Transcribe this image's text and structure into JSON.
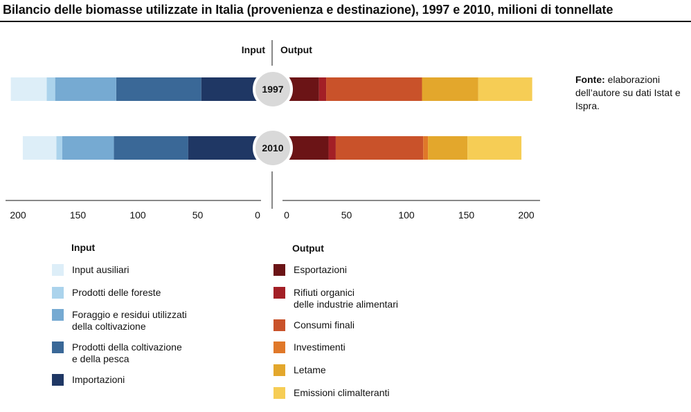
{
  "title": "Bilancio delle biomasse utilizzate in Italia (provenienza e destinazione), 1997 e 2010, milioni di tonnellate",
  "source": {
    "label": "Fonte:",
    "text": "elaborazioni dell’autore su dati Istat e Ispra."
  },
  "chart_data": {
    "type": "bar",
    "orientation": "horizontal-butterfly",
    "categories": [
      "1997",
      "2010"
    ],
    "input": {
      "header": "Input",
      "direction": "left",
      "xlim": [
        0,
        210
      ],
      "ticks": [
        200,
        150,
        100,
        50,
        0
      ],
      "series": [
        {
          "name": "Importazioni",
          "color": "#1f3764",
          "values": [
            47,
            58
          ]
        },
        {
          "name": "Prodotti della coltivazione\ne della pesca",
          "color": "#3a6897",
          "values": [
            71,
            62
          ]
        },
        {
          "name": "Foraggio e residui utilizzati\ndella coltivazione",
          "color": "#76aad2",
          "values": [
            51,
            43
          ]
        },
        {
          "name": "Prodotti delle foreste",
          "color": "#abd3ec",
          "values": [
            7,
            5
          ]
        },
        {
          "name": "Input ausiliari",
          "color": "#ddeef8",
          "values": [
            30,
            28
          ]
        }
      ]
    },
    "output": {
      "header": "Output",
      "direction": "right",
      "xlim": [
        0,
        210
      ],
      "ticks": [
        0,
        50,
        100,
        150,
        200
      ],
      "series": [
        {
          "name": "Esportazioni",
          "color": "#6b1416",
          "values": [
            27,
            35
          ]
        },
        {
          "name": "Rifiuti organici\ndelle industrie alimentari",
          "color": "#a31f26",
          "values": [
            6,
            6
          ]
        },
        {
          "name": "Consumi finali",
          "color": "#c9522a",
          "values": [
            80,
            73
          ]
        },
        {
          "name": "Investimenti",
          "color": "#e07829",
          "values": [
            0,
            4
          ]
        },
        {
          "name": "Letame",
          "color": "#e3a72c",
          "values": [
            47,
            33
          ]
        },
        {
          "name": "Emissioni climalteranti",
          "color": "#f6cd55",
          "values": [
            45,
            45
          ]
        }
      ]
    }
  },
  "legend": {
    "input_title": "Input",
    "output_title": "Output",
    "input_items": [
      {
        "label": "Input ausiliari",
        "color": "#ddeef8"
      },
      {
        "label": "Prodotti delle foreste",
        "color": "#abd3ec"
      },
      {
        "label": "Foraggio e residui utilizzati\ndella coltivazione",
        "color": "#76aad2"
      },
      {
        "label": "Prodotti della coltivazione\ne della pesca",
        "color": "#3a6897"
      },
      {
        "label": "Importazioni",
        "color": "#1f3764"
      }
    ],
    "output_items": [
      {
        "label": "Esportazioni",
        "color": "#6b1416"
      },
      {
        "label": "Rifiuti organici\ndelle industrie alimentari",
        "color": "#a31f26"
      },
      {
        "label": "Consumi finali",
        "color": "#c9522a"
      },
      {
        "label": "Investimenti",
        "color": "#e07829"
      },
      {
        "label": "Letame",
        "color": "#e3a72c"
      },
      {
        "label": "Emissioni climalteranti",
        "color": "#f6cd55"
      }
    ]
  }
}
